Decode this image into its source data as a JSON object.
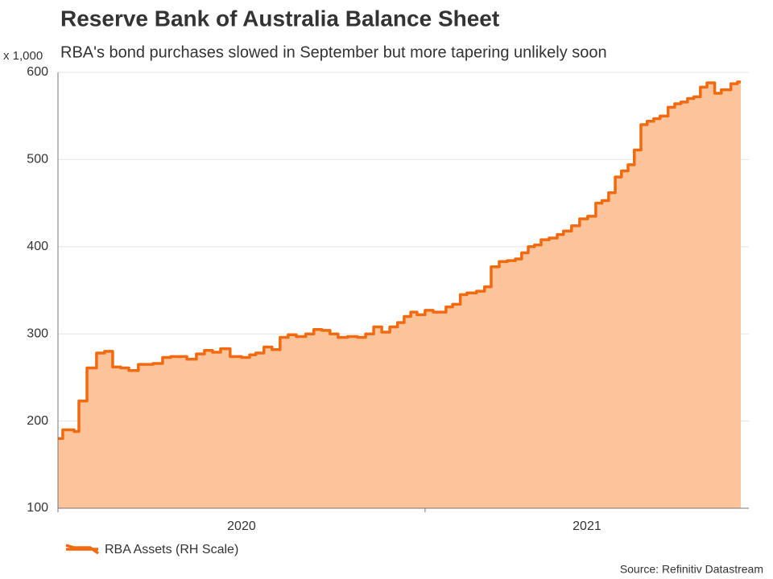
{
  "chart_data": {
    "type": "area",
    "title": "Reserve Bank of Australia Balance Sheet",
    "subtitle": "RBA's bond purchases slowed in September but more tapering unlikely soon",
    "y_unit": "x 1,000",
    "source": "Source: Refinitiv Datastream",
    "step": true,
    "grid": true,
    "legend": "bottom-left",
    "x": [
      2020.0,
      2020.013,
      2020.044,
      2020.057,
      2020.079,
      2020.105,
      2020.127,
      2020.149,
      2020.171,
      2020.193,
      2020.219,
      2020.259,
      2020.285,
      2020.307,
      2020.351,
      2020.377,
      2020.399,
      2020.421,
      2020.443,
      2020.469,
      2020.5,
      2020.522,
      2020.539,
      2020.561,
      2020.583,
      2020.605,
      2020.627,
      2020.649,
      2020.675,
      2020.697,
      2020.719,
      2020.741,
      2020.763,
      2020.789,
      2020.816,
      2020.838,
      2020.86,
      2020.882,
      2020.904,
      2020.925,
      2020.943,
      2020.961,
      2020.978,
      2021.0,
      2021.022,
      2021.057,
      2021.075,
      2021.096,
      2021.114,
      2021.14,
      2021.162,
      2021.18,
      2021.202,
      2021.224,
      2021.246,
      2021.263,
      2021.281,
      2021.298,
      2021.316,
      2021.338,
      2021.36,
      2021.377,
      2021.399,
      2021.421,
      2021.443,
      2021.465,
      2021.482,
      2021.5,
      2021.518,
      2021.535,
      2021.553,
      2021.57,
      2021.588,
      2021.605,
      2021.623,
      2021.64,
      2021.662,
      2021.68,
      2021.697,
      2021.715,
      2021.732,
      2021.75,
      2021.768,
      2021.789,
      2021.807,
      2021.833,
      2021.851,
      2021.86
    ],
    "series": [
      {
        "name": "RBA Assets (RH Scale)",
        "color": "#f26a10",
        "fill": "#fdc39b",
        "values": [
          180,
          190,
          188,
          223,
          261,
          278,
          280,
          262,
          261,
          258,
          265,
          266,
          273,
          274,
          271,
          277,
          281,
          279,
          283,
          274,
          273,
          276,
          278,
          285,
          282,
          296,
          299,
          297,
          300,
          305,
          304,
          300,
          296,
          297,
          296,
          300,
          308,
          302,
          308,
          313,
          320,
          325,
          322,
          327,
          325,
          331,
          334,
          345,
          347,
          349,
          354,
          377,
          383,
          384,
          386,
          393,
          400,
          402,
          408,
          410,
          414,
          418,
          424,
          432,
          435,
          450,
          453,
          462,
          480,
          487,
          494,
          511,
          540,
          544,
          547,
          550,
          560,
          564,
          566,
          570,
          572,
          583,
          588,
          576,
          580,
          587,
          589,
          589
        ]
      }
    ],
    "xlim": [
      2020,
      2021.882
    ],
    "xticks": [
      2020,
      2021
    ],
    "ylim": [
      100,
      600
    ],
    "yticks": [
      100,
      200,
      300,
      400,
      500,
      600
    ]
  }
}
